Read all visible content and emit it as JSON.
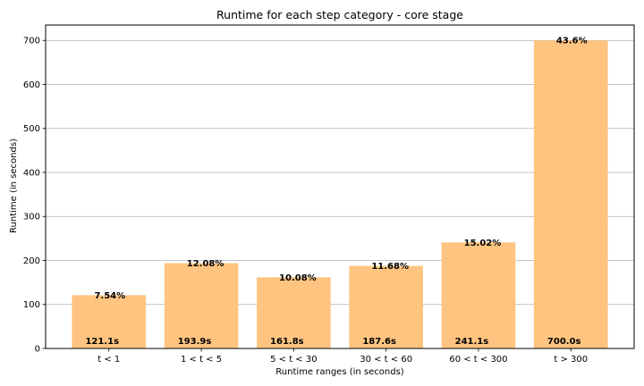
{
  "chart_data": {
    "type": "bar",
    "title": "Runtime for each step category - core stage",
    "xlabel": "Runtime ranges (in seconds)",
    "ylabel": "Runtime (in seconds)",
    "categories": [
      "t < 1",
      "1 < t < 5",
      "5 < t < 30",
      "30 < t < 60",
      "60 < t < 300",
      "t > 300"
    ],
    "values": [
      121.1,
      193.9,
      161.8,
      187.6,
      241.1,
      700.0
    ],
    "percent_labels": [
      "7.54%",
      "12.08%",
      "10.08%",
      "11.68%",
      "15.02%",
      "43.6%"
    ],
    "value_labels": [
      "121.1s",
      "193.9s",
      "161.8s",
      "187.6s",
      "241.1s",
      "700.0s"
    ],
    "ylim": [
      0,
      735
    ],
    "yticks": [
      0,
      100,
      200,
      300,
      400,
      500,
      600,
      700
    ],
    "grid": "horizontal",
    "bar_color": "#ffc480"
  }
}
